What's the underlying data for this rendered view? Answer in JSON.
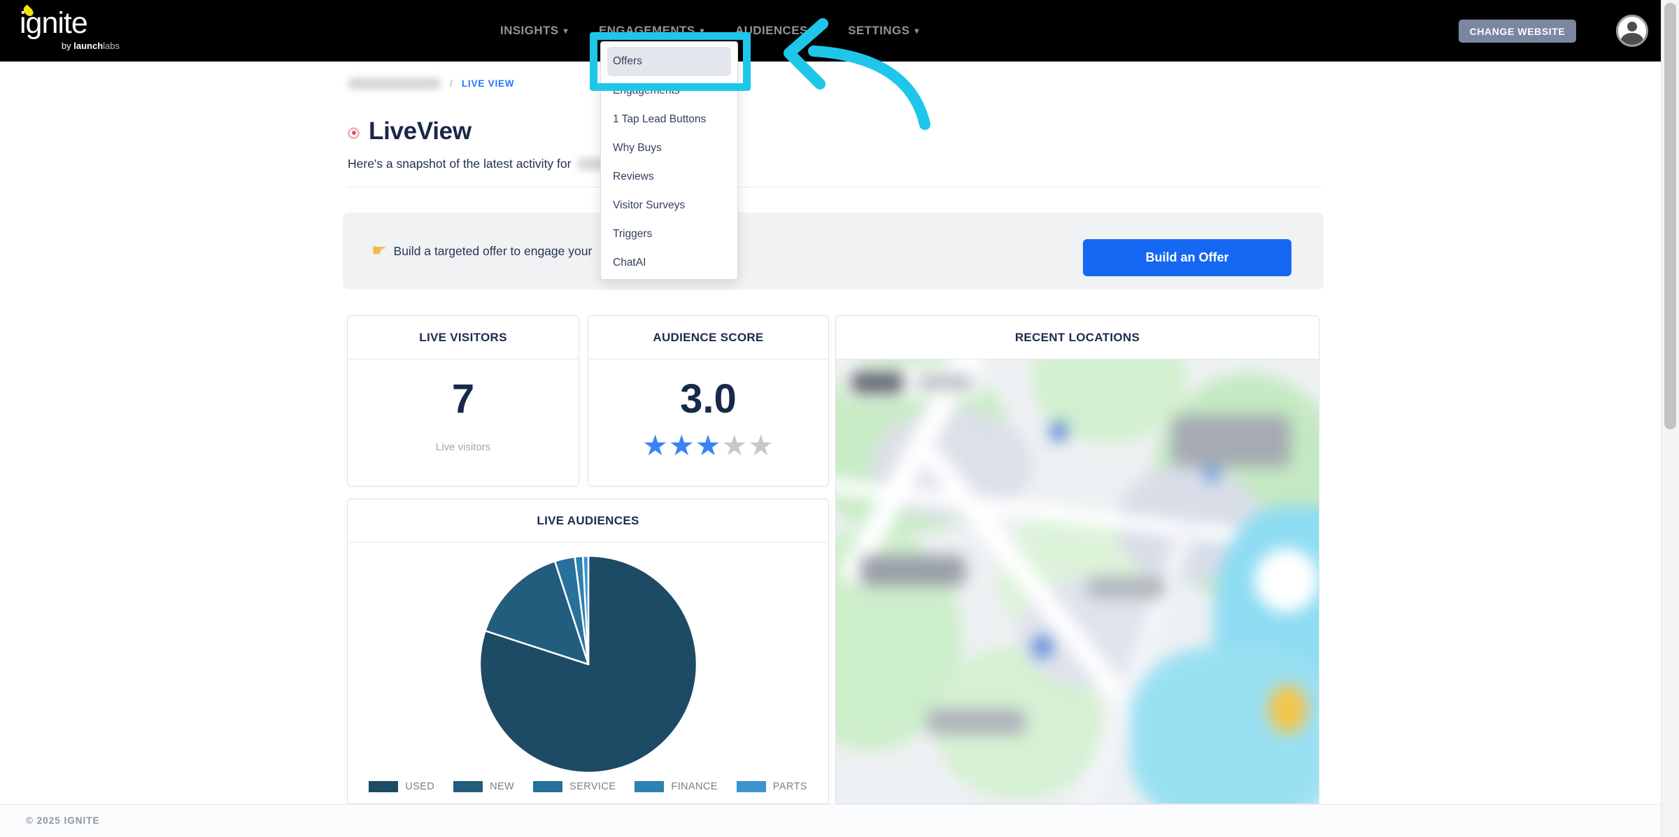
{
  "navbar": {
    "logo": {
      "name": "ignite",
      "byline_prefix": "by ",
      "byline_brand": "launch",
      "byline_suffix": "labs"
    },
    "items": [
      {
        "label": "INSIGHTS"
      },
      {
        "label": "ENGAGEMENTS"
      },
      {
        "label": "AUDIENCES"
      },
      {
        "label": "SETTINGS"
      }
    ],
    "change_website_label": "CHANGE WEBSITE"
  },
  "engagements_dropdown": {
    "active_item": "Offers",
    "items": [
      "Offers",
      "Engagements",
      "1 Tap Lead Buttons",
      "Why Buys",
      "Reviews",
      "Visitor Surveys",
      "Triggers",
      "ChatAI"
    ]
  },
  "breadcrumb": {
    "separator": "/",
    "current": "LIVE VIEW"
  },
  "page": {
    "title": "LiveView",
    "subtitle": "Here's a snapshot of the latest activity for"
  },
  "offer_banner": {
    "icon_char": "☛",
    "icon_name": "pointing-right-hand-icon",
    "text": "Build a targeted offer to engage your",
    "button_label": "Build an Offer"
  },
  "cards": {
    "live_visitors": {
      "title": "LIVE VISITORS",
      "value": "7",
      "caption": "Live visitors"
    },
    "audience_score": {
      "title": "AUDIENCE SCORE",
      "value": "3.0",
      "stars_filled": 3,
      "stars_total": 5,
      "star_char": "★"
    },
    "recent_locations": {
      "title": "RECENT LOCATIONS"
    },
    "live_audiences": {
      "title": "LIVE AUDIENCES"
    }
  },
  "chart_data": {
    "type": "pie",
    "title": "LIVE AUDIENCES",
    "categories": [
      "USED",
      "NEW",
      "SERVICE",
      "FINANCE",
      "PARTS"
    ],
    "values": [
      80,
      15,
      3,
      1.2,
      0.8
    ],
    "values_note": "percent share, estimated from slice angles",
    "colors": [
      "#1d4b66",
      "#235d7d",
      "#27719b",
      "#2d81b3",
      "#3b94cf"
    ],
    "legend_position": "bottom",
    "slice_border_color": "#ffffff"
  },
  "footer": {
    "copyright": "© 2025 IGNITE"
  },
  "colors": {
    "navbar_bg": "#000000",
    "primary_button_blue": "#1468f2",
    "change_website_gray": "#7b87a1",
    "breadcrumb_link_blue": "#2478ff",
    "star_filled_blue": "#3b82f6",
    "star_empty_gray": "#c6c9cc",
    "annotation_cyan": "#1ec7ea",
    "heading_navy": "#1a2847",
    "logo_flame_yellow": "#f2e20e"
  }
}
